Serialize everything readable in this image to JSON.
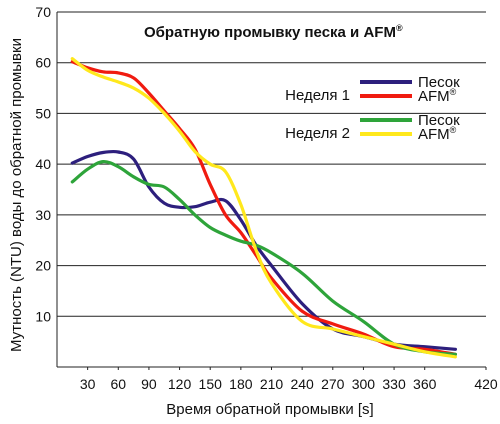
{
  "chart_data": {
    "type": "line",
    "title": "Обратную промывку песка и AFM",
    "title_mark": "®",
    "xlabel": "Время обратной промывки [s]",
    "ylabel": "Мутность (NTU) воды до обратной промывки",
    "xlim": [
      0,
      420
    ],
    "ylim": [
      0,
      70
    ],
    "x_ticks": [
      30,
      60,
      90,
      120,
      150,
      180,
      210,
      240,
      270,
      300,
      330,
      360,
      420
    ],
    "x_tick_labels": [
      "30",
      "60",
      "90",
      "120",
      "150",
      "180",
      "210",
      "240",
      "270",
      "300",
      "330",
      "360",
      "420"
    ],
    "y_ticks": [
      10,
      20,
      30,
      40,
      50,
      60,
      70
    ],
    "y_tick_labels": [
      "10",
      "20",
      "30",
      "40",
      "50",
      "60",
      "70"
    ],
    "grid": "horizontal",
    "legend_position": "top-right",
    "legend_groups": [
      {
        "label": "Неделя 1",
        "series_indices": [
          0,
          1
        ]
      },
      {
        "label": "Неделя 2",
        "series_indices": [
          2,
          3
        ]
      }
    ],
    "series": [
      {
        "name": "Песок",
        "name_mark": "",
        "color": "#2d1f7d",
        "x": [
          15,
          30,
          45,
          60,
          75,
          90,
          105,
          120,
          135,
          150,
          165,
          180,
          195,
          210,
          240,
          270,
          300,
          330,
          360,
          390
        ],
        "y": [
          40.2,
          41.5,
          42.3,
          42.4,
          41.0,
          35.5,
          32.3,
          31.5,
          31.6,
          32.5,
          32.8,
          29.0,
          24.0,
          20.0,
          12.5,
          7.5,
          6.0,
          4.5,
          4.0,
          3.5
        ]
      },
      {
        "name": "AFM",
        "name_mark": "®",
        "color": "#f01b10",
        "x": [
          15,
          30,
          45,
          60,
          75,
          90,
          105,
          120,
          135,
          150,
          165,
          180,
          195,
          210,
          240,
          270,
          300,
          330,
          360,
          390
        ],
        "y": [
          60.2,
          59.0,
          58.2,
          58.0,
          57.0,
          54.0,
          50.5,
          47.0,
          43.0,
          36.0,
          30.0,
          26.5,
          22.0,
          17.5,
          11.0,
          8.5,
          6.5,
          4.0,
          3.5,
          2.5
        ]
      },
      {
        "name": "Песок",
        "name_mark": "",
        "color": "#2ea43a",
        "x": [
          15,
          30,
          45,
          60,
          75,
          90,
          105,
          120,
          135,
          150,
          165,
          180,
          195,
          210,
          240,
          270,
          300,
          330,
          360,
          390
        ],
        "y": [
          36.5,
          39.0,
          40.5,
          39.5,
          37.5,
          36.0,
          35.5,
          33.0,
          30.0,
          27.5,
          26.0,
          24.8,
          24.0,
          22.5,
          18.5,
          13.0,
          9.0,
          4.5,
          3.0,
          2.5
        ]
      },
      {
        "name": "AFM",
        "name_mark": "®",
        "color": "#ffe81c",
        "x": [
          15,
          30,
          45,
          60,
          75,
          90,
          105,
          120,
          135,
          150,
          165,
          180,
          195,
          210,
          240,
          270,
          300,
          330,
          360,
          390
        ],
        "y": [
          60.8,
          58.5,
          57.2,
          56.2,
          55.0,
          53.0,
          50.0,
          46.5,
          42.5,
          40.0,
          38.5,
          32.0,
          23.0,
          16.5,
          9.0,
          7.5,
          6.0,
          4.5,
          3.0,
          2.0
        ]
      }
    ]
  }
}
